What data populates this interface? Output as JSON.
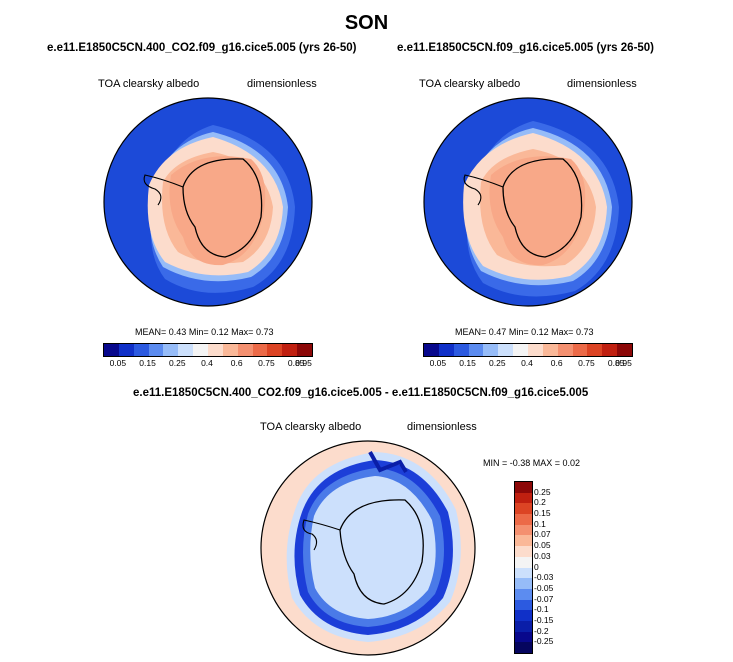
{
  "title": "SON",
  "panels": [
    {
      "case": "e.e11.E1850C5CN.400_CO2.f09_g16.cice5.005 (yrs 26-50)",
      "variable": "TOA clearsky albedo",
      "units": "dimensionless",
      "stats": {
        "mean_label": "MEAN=",
        "mean": "0.43",
        "min_label": "Min=",
        "min": "0.12",
        "max_label": "Max=",
        "max": "0.73"
      }
    },
    {
      "case": "e.e11.E1850C5CN.f09_g16.cice5.005 (yrs 26-50)",
      "variable": "TOA clearsky albedo",
      "units": "dimensionless",
      "stats": {
        "mean_label": "MEAN=",
        "mean": "0.47",
        "min_label": "Min=",
        "min": "0.12",
        "max_label": "Max=",
        "max": "0.73"
      }
    }
  ],
  "abs_colorbar": {
    "labels": [
      "0.05",
      "0.15",
      "0.25",
      "0.4",
      "0.6",
      "0.75",
      "0.85",
      "0.95"
    ],
    "colors": [
      "#08088c",
      "#1030c8",
      "#2c5ae0",
      "#5c8cf0",
      "#96bcf8",
      "#cce0fc",
      "#f4f4f4",
      "#fcdccc",
      "#fab898",
      "#f49070",
      "#ec6a48",
      "#dc4424",
      "#c02010",
      "#8c0808"
    ]
  },
  "diff": {
    "case": "e.e11.E1850C5CN.400_CO2.f09_g16.cice5.005 - e.e11.E1850C5CN.f09_g16.cice5.005",
    "variable": "TOA clearsky albedo",
    "units": "dimensionless",
    "stats_label": "MIN =  -0.38 MAX =  0.02",
    "colorbar": {
      "labels": [
        "0.25",
        "0.2",
        "0.15",
        "0.1",
        "0.07",
        "0.05",
        "0.03",
        "0",
        "-0.03",
        "-0.05",
        "-0.07",
        "-0.1",
        "-0.15",
        "-0.2",
        "-0.25"
      ],
      "colors": [
        "#8c0808",
        "#c02010",
        "#dc4424",
        "#ec6a48",
        "#f49070",
        "#fab898",
        "#fcdccc",
        "#f4f4f4",
        "#cce0fc",
        "#96bcf8",
        "#5c8cf0",
        "#2c5ae0",
        "#1030c8",
        "#0a1ea8",
        "#08088c",
        "#05055e"
      ]
    }
  }
}
